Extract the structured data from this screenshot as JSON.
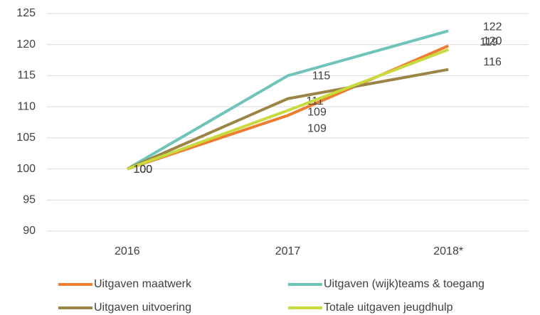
{
  "chart_data": {
    "type": "line",
    "categories": [
      "2016",
      "2017",
      "2018*"
    ],
    "series": [
      {
        "name": "Uitgaven maatwerk",
        "color": "#ed7d31",
        "values": [
          100,
          108.6,
          119.8
        ],
        "value_labels": [
          "100",
          "109",
          "120"
        ]
      },
      {
        "name": "Uitgaven (wijk)teams & toegang",
        "color": "#6fc4ba",
        "values": [
          100,
          115,
          122.2
        ],
        "value_labels": [
          "100",
          "115",
          "122"
        ]
      },
      {
        "name": "Uitgaven uitvoering",
        "color": "#9b8446",
        "values": [
          100,
          111.3,
          116
        ],
        "value_labels": [
          "100",
          "111",
          "116"
        ]
      },
      {
        "name": "Totale uitgaven jeugdhulp",
        "color": "#c8da3c",
        "values": [
          100,
          109.4,
          119.2
        ],
        "value_labels": [
          "100",
          "109",
          "119"
        ]
      }
    ],
    "ylim": [
      90,
      125
    ],
    "yticks": [
      90,
      95,
      100,
      105,
      110,
      115,
      120,
      125
    ],
    "grid": true
  }
}
